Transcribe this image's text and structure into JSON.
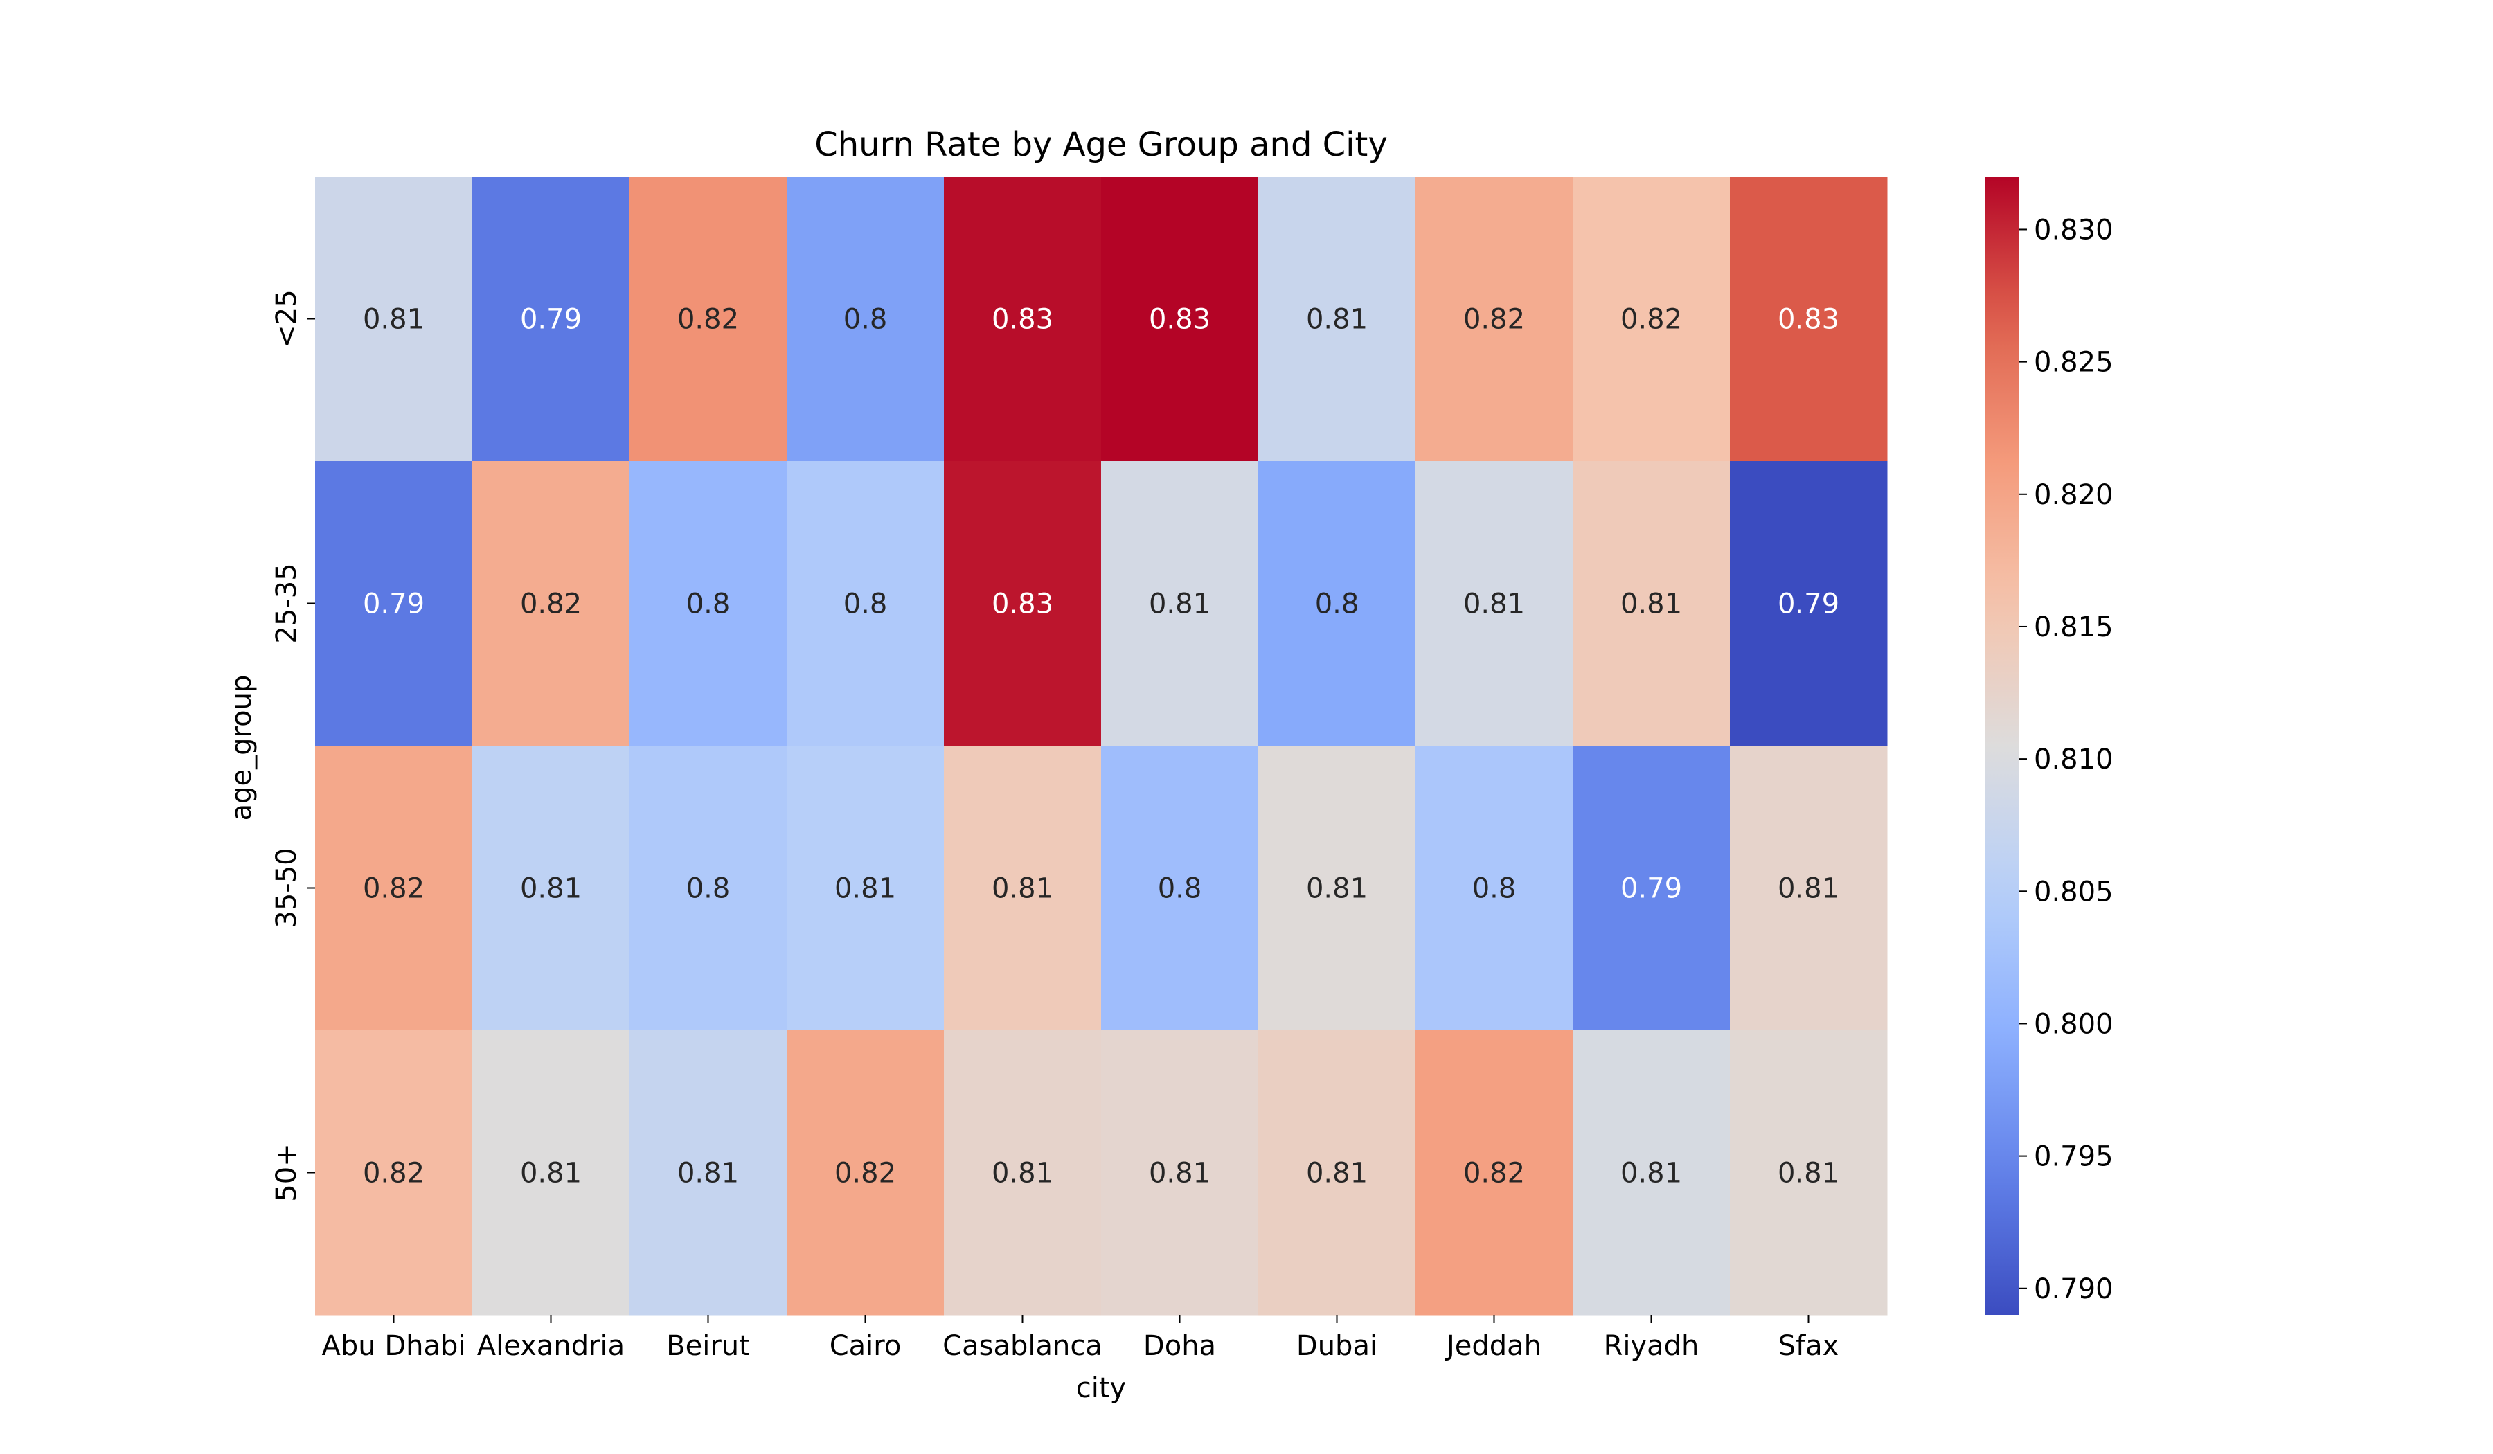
{
  "chart_data": {
    "type": "heatmap",
    "title": "Churn Rate by Age Group and City",
    "xlabel": "city",
    "ylabel": "age_group",
    "x_categories": [
      "Abu Dhabi",
      "Alexandria",
      "Beirut",
      "Cairo",
      "Casablanca",
      "Doha",
      "Dubai",
      "Jeddah",
      "Riyadh",
      "Sfax"
    ],
    "y_categories": [
      "<25",
      "25-35",
      "35-50",
      "50+"
    ],
    "values": [
      [
        0.808,
        0.7935,
        0.822,
        0.798,
        0.8315,
        0.832,
        0.8075,
        0.819,
        0.816,
        0.827
      ],
      [
        0.7935,
        0.819,
        0.801,
        0.804,
        0.831,
        0.809,
        0.799,
        0.809,
        0.8145,
        0.789
      ],
      [
        0.8195,
        0.806,
        0.804,
        0.805,
        0.8145,
        0.802,
        0.811,
        0.8035,
        0.795,
        0.8125
      ],
      [
        0.817,
        0.8105,
        0.807,
        0.8195,
        0.8125,
        0.812,
        0.8135,
        0.8205,
        0.8095,
        0.8115
      ]
    ],
    "annotations": [
      [
        "0.81",
        "0.79",
        "0.82",
        "0.8",
        "0.83",
        "0.83",
        "0.81",
        "0.82",
        "0.82",
        "0.83"
      ],
      [
        "0.79",
        "0.82",
        "0.8",
        "0.8",
        "0.83",
        "0.81",
        "0.8",
        "0.81",
        "0.81",
        "0.79"
      ],
      [
        "0.82",
        "0.81",
        "0.8",
        "0.81",
        "0.81",
        "0.8",
        "0.81",
        "0.8",
        "0.79",
        "0.81"
      ],
      [
        "0.82",
        "0.81",
        "0.81",
        "0.82",
        "0.81",
        "0.81",
        "0.81",
        "0.82",
        "0.81",
        "0.81"
      ]
    ],
    "colormap": "coolwarm",
    "colorbar": {
      "min": 0.789,
      "max": 0.832,
      "ticks": [
        0.79,
        0.795,
        0.8,
        0.805,
        0.81,
        0.815,
        0.82,
        0.825,
        0.83
      ],
      "tick_labels": [
        "0.790",
        "0.795",
        "0.800",
        "0.805",
        "0.810",
        "0.815",
        "0.820",
        "0.825",
        "0.830"
      ]
    },
    "grid": false
  }
}
